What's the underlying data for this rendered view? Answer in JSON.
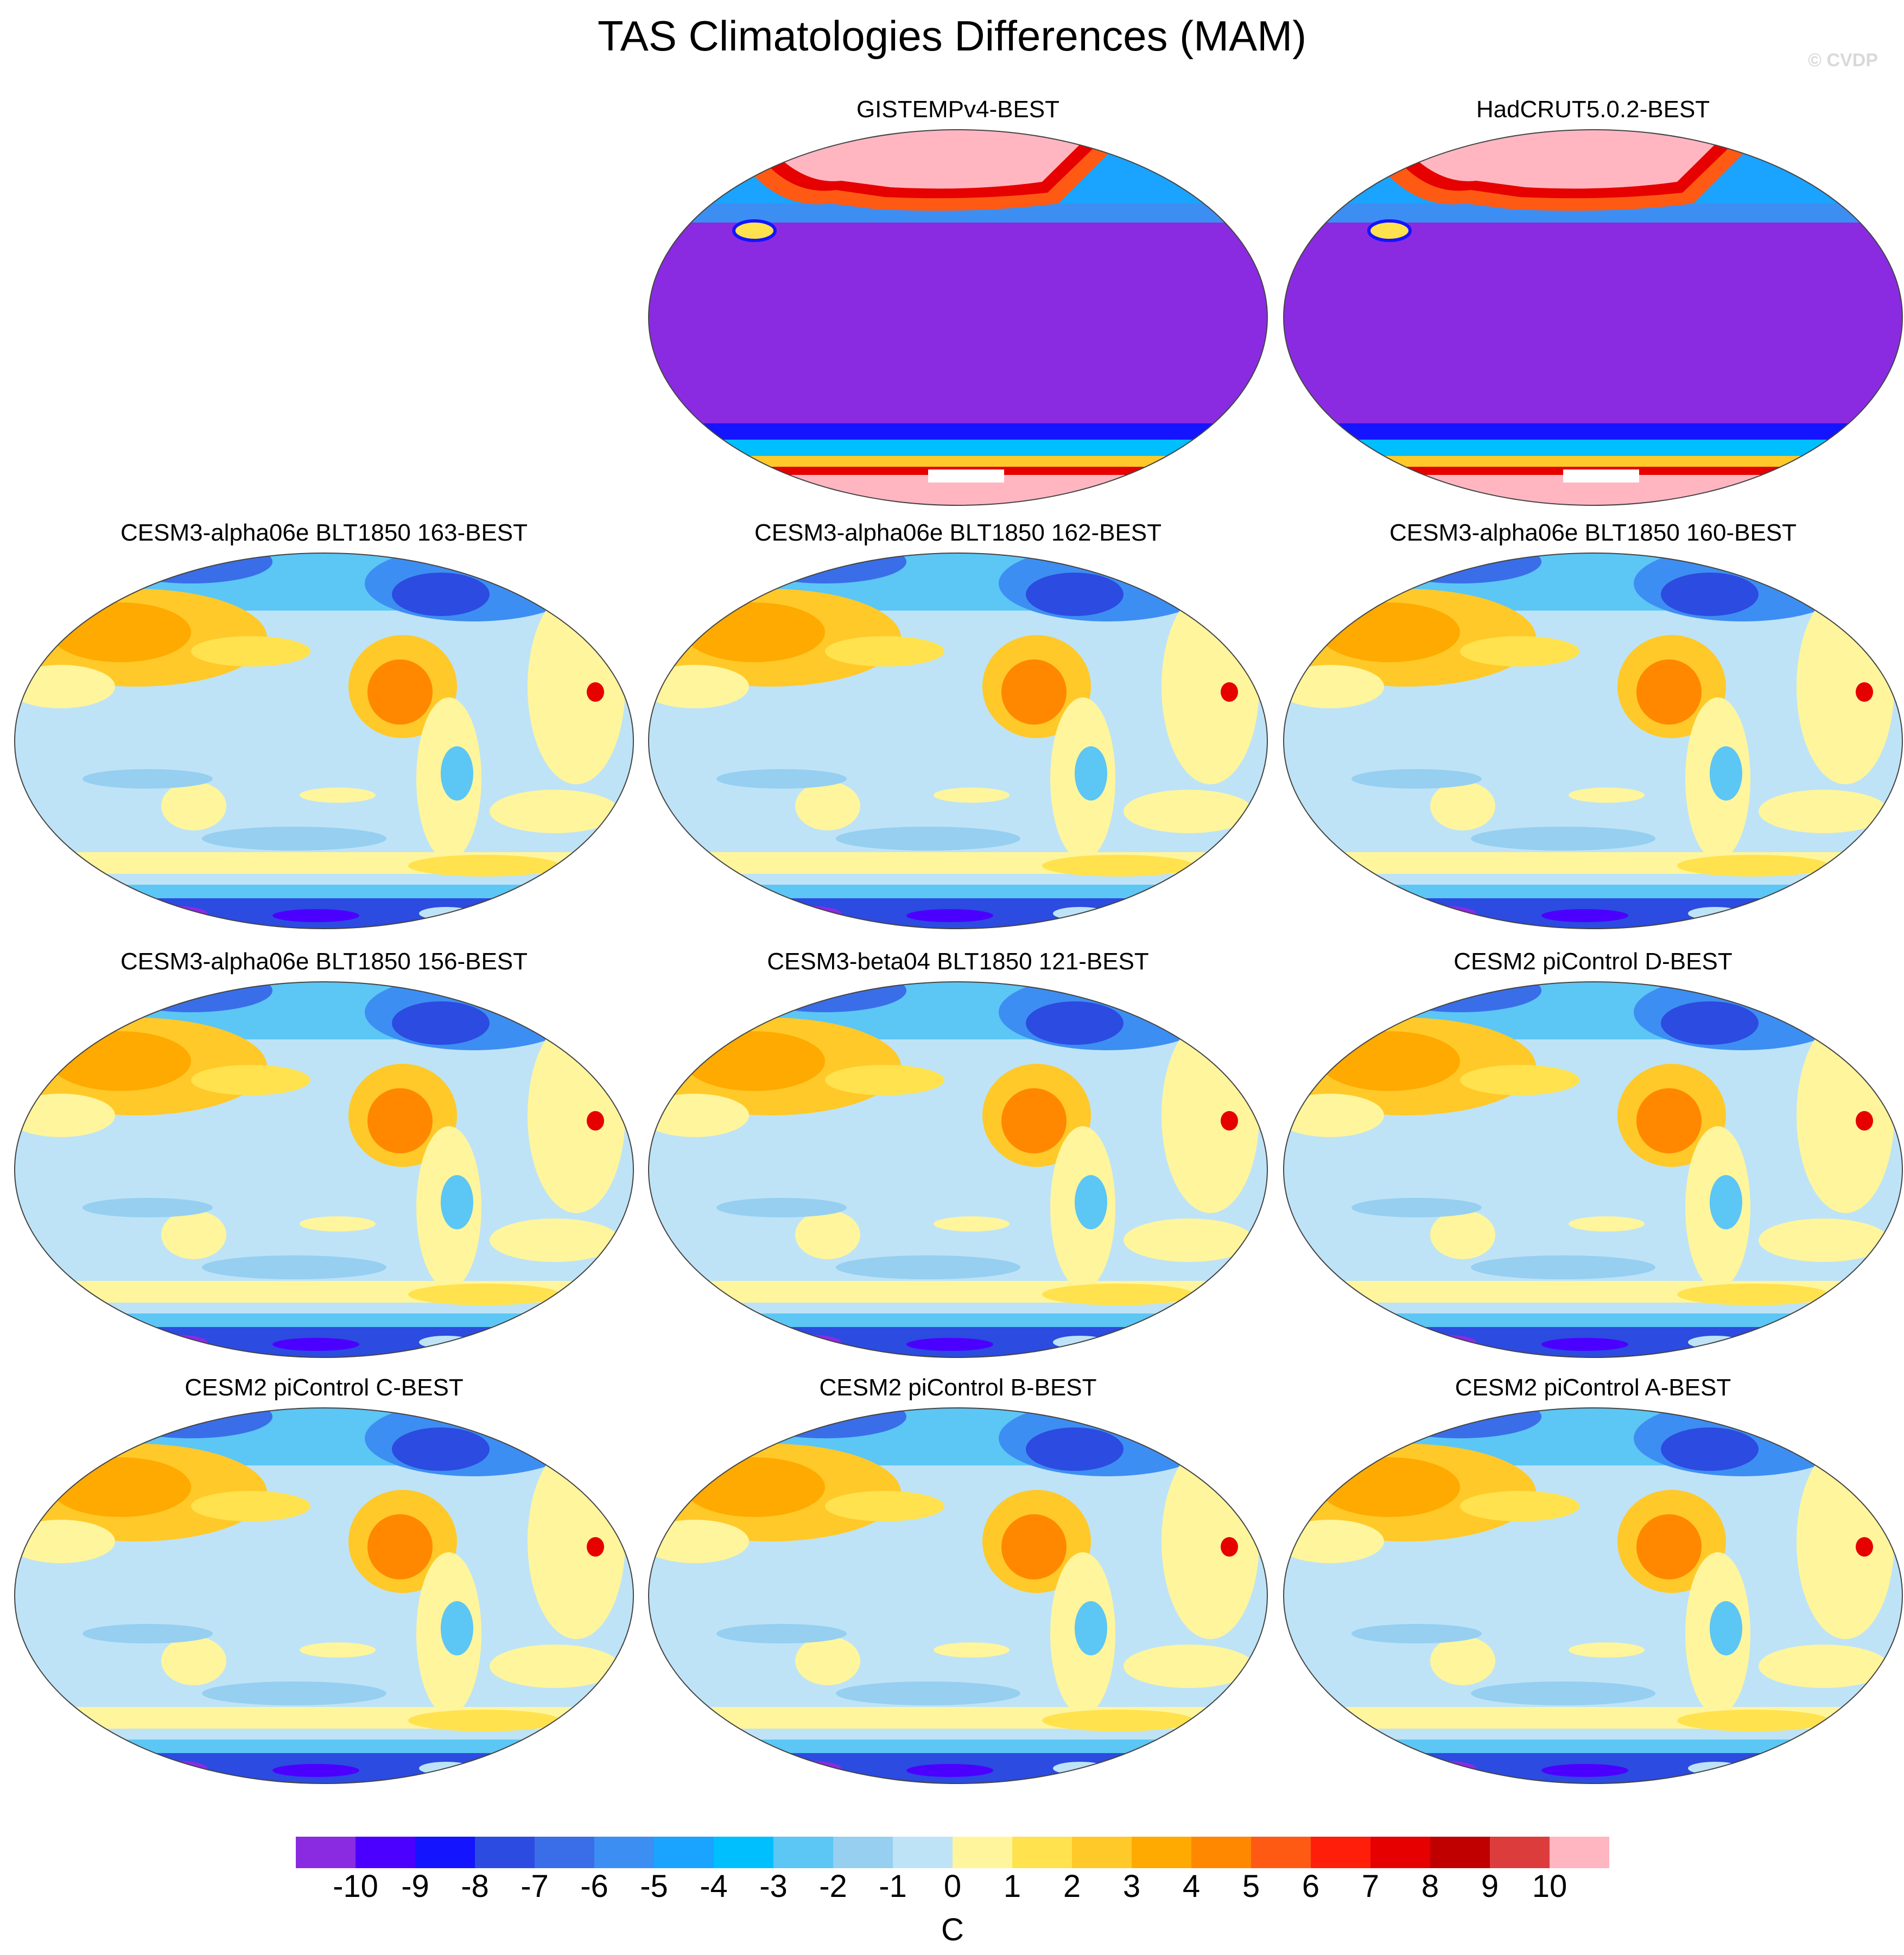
{
  "title": "TAS Climatologies Differences (MAM)",
  "credit": "© CVDP",
  "panels": [
    {
      "title": "GISTEMPv4-BEST",
      "kind": "obs"
    },
    {
      "title": "HadCRUT5.0.2-BEST",
      "kind": "obs"
    },
    {
      "title": "CESM3-alpha06e BLT1850 163-BEST",
      "kind": "model"
    },
    {
      "title": "CESM3-alpha06e BLT1850 162-BEST",
      "kind": "model"
    },
    {
      "title": "CESM3-alpha06e BLT1850 160-BEST",
      "kind": "model"
    },
    {
      "title": "CESM3-alpha06e BLT1850 156-BEST",
      "kind": "model"
    },
    {
      "title": "CESM3-beta04 BLT1850 121-BEST",
      "kind": "model"
    },
    {
      "title": "CESM2 piControl D-BEST",
      "kind": "model"
    },
    {
      "title": "CESM2 piControl C-BEST",
      "kind": "model"
    },
    {
      "title": "CESM2 piControl B-BEST",
      "kind": "model"
    },
    {
      "title": "CESM2 piControl A-BEST",
      "kind": "model"
    }
  ],
  "colorbar": {
    "unit": "C",
    "ticks": [
      "-10",
      "-9",
      "-8",
      "-7",
      "-6",
      "-5",
      "-4",
      "-3",
      "-2",
      "-1",
      "0",
      "1",
      "2",
      "3",
      "4",
      "5",
      "6",
      "7",
      "8",
      "9",
      "10"
    ],
    "colors": [
      "#8a2be2",
      "#4b00ff",
      "#1414ff",
      "#2c4be0",
      "#3a6ee8",
      "#3d8ef2",
      "#1aa3ff",
      "#00bfff",
      "#5cc6f5",
      "#96cff0",
      "#bee3f7",
      "#fff59d",
      "#ffe24d",
      "#ffc929",
      "#ffaa00",
      "#ff8800",
      "#ff5a14",
      "#ff1e0a",
      "#e60000",
      "#c00000",
      "#dc3c3c",
      "#ffb6c1"
    ]
  }
}
